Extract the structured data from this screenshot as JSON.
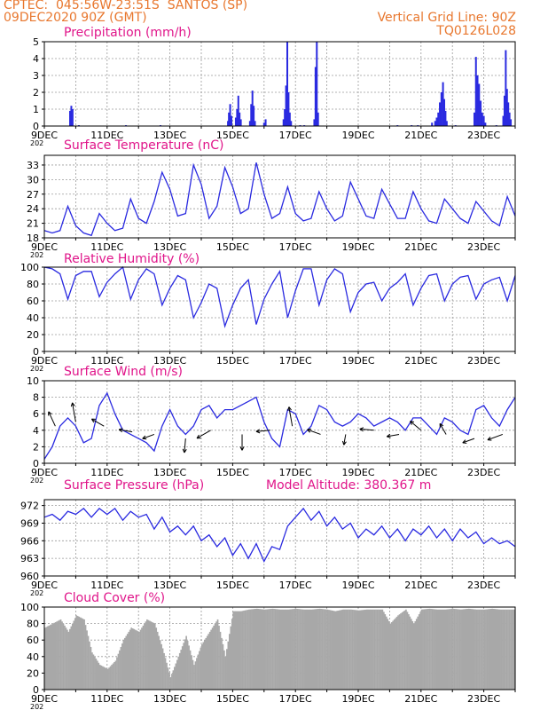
{
  "header": {
    "line1": "CPTEC:  045:56W-23:51S  SANTOS (SP)",
    "line2": "09DEC2020 90Z (GMT)",
    "grid_note": "Vertical Grid Line: 90Z",
    "code": "TQ0126L028"
  },
  "colors": {
    "header": "#e8772e",
    "title": "#e0158a",
    "series": "#2a2ae0",
    "cloud": "#a8a8a8",
    "grid": "#9a9a9a"
  },
  "x_axis": {
    "labels": [
      "9DEC",
      "11DEC",
      "13DEC",
      "15DEC",
      "17DEC",
      "19DEC",
      "21DEC",
      "23DEC"
    ],
    "stub": "202",
    "start_day": 9,
    "end_day": 24
  },
  "chart_data": [
    {
      "type": "bar",
      "title": "Precipitation (mm/h)",
      "ylim": [
        0,
        5
      ],
      "yticks": [
        "0",
        "1",
        "2",
        "3",
        "4",
        "5"
      ],
      "x_units": "days (DEC 2020)",
      "bars": [
        [
          9.82,
          0.9
        ],
        [
          9.86,
          1.2
        ],
        [
          9.9,
          1.0
        ],
        [
          10.1,
          0.05
        ],
        [
          11.6,
          0.05
        ],
        [
          12.7,
          0.05
        ],
        [
          14.85,
          0.3
        ],
        [
          14.88,
          0.8
        ],
        [
          14.92,
          1.3
        ],
        [
          14.96,
          0.6
        ],
        [
          15.1,
          0.5
        ],
        [
          15.14,
          1.0
        ],
        [
          15.18,
          1.8
        ],
        [
          15.22,
          0.8
        ],
        [
          15.26,
          0.4
        ],
        [
          15.55,
          0.3
        ],
        [
          15.59,
          1.3
        ],
        [
          15.63,
          2.1
        ],
        [
          15.67,
          1.2
        ],
        [
          15.71,
          0.3
        ],
        [
          16.0,
          0.2
        ],
        [
          16.05,
          0.4
        ],
        [
          16.62,
          0.4
        ],
        [
          16.66,
          1.0
        ],
        [
          16.7,
          2.4
        ],
        [
          16.74,
          5.0
        ],
        [
          16.78,
          2.0
        ],
        [
          16.82,
          0.8
        ],
        [
          16.86,
          0.3
        ],
        [
          17.15,
          0.05
        ],
        [
          17.28,
          0.05
        ],
        [
          17.6,
          0.4
        ],
        [
          17.64,
          3.5
        ],
        [
          17.68,
          5.0
        ],
        [
          17.72,
          0.8
        ],
        [
          20.25,
          0.05
        ],
        [
          20.7,
          0.05
        ],
        [
          20.9,
          0.05
        ],
        [
          21.35,
          0.2
        ],
        [
          21.45,
          0.3
        ],
        [
          21.5,
          0.5
        ],
        [
          21.55,
          0.8
        ],
        [
          21.6,
          1.4
        ],
        [
          21.65,
          2.0
        ],
        [
          21.7,
          2.6
        ],
        [
          21.74,
          1.6
        ],
        [
          21.78,
          0.9
        ],
        [
          21.82,
          0.3
        ],
        [
          22.1,
          0.05
        ],
        [
          22.7,
          0.8
        ],
        [
          22.75,
          4.1
        ],
        [
          22.8,
          3.0
        ],
        [
          22.85,
          2.5
        ],
        [
          22.9,
          1.5
        ],
        [
          22.95,
          0.8
        ],
        [
          23.0,
          0.6
        ],
        [
          23.05,
          0.2
        ],
        [
          23.4,
          0.05
        ],
        [
          23.62,
          0.6
        ],
        [
          23.66,
          1.8
        ],
        [
          23.7,
          4.5
        ],
        [
          23.74,
          2.2
        ],
        [
          23.78,
          1.4
        ],
        [
          23.82,
          0.8
        ],
        [
          23.86,
          0.4
        ]
      ]
    },
    {
      "type": "line",
      "title": "Surface Temperature (nC)",
      "ylim": [
        18,
        35
      ],
      "yticks": [
        "18",
        "21",
        "24",
        "27",
        "30",
        "33"
      ],
      "ytick_values": [
        18,
        21,
        24,
        27,
        30,
        33
      ],
      "x": [
        9,
        9.25,
        9.5,
        9.75,
        10,
        10.25,
        10.5,
        10.75,
        11,
        11.25,
        11.5,
        11.75,
        12,
        12.25,
        12.5,
        12.75,
        13,
        13.25,
        13.5,
        13.75,
        14,
        14.25,
        14.5,
        14.75,
        15,
        15.25,
        15.5,
        15.75,
        16,
        16.25,
        16.5,
        16.75,
        17,
        17.25,
        17.5,
        17.75,
        18,
        18.25,
        18.5,
        18.75,
        19,
        19.25,
        19.5,
        19.75,
        20,
        20.25,
        20.5,
        20.75,
        21,
        21.25,
        21.5,
        21.75,
        22,
        22.25,
        22.5,
        22.75,
        23,
        23.25,
        23.5,
        23.75,
        24
      ],
      "series": [
        {
          "values": [
            19.5,
            19.0,
            19.5,
            24.5,
            20.5,
            19.0,
            18.5,
            23.0,
            21.0,
            19.5,
            20.0,
            26.0,
            22.0,
            21.0,
            25.5,
            31.5,
            28.0,
            22.5,
            23.0,
            33.0,
            29.0,
            22.0,
            24.5,
            32.5,
            28.5,
            23.0,
            24.0,
            33.5,
            27.0,
            22.0,
            23.0,
            28.5,
            23.0,
            21.5,
            22.0,
            27.5,
            24.0,
            21.5,
            22.5,
            29.5,
            26.0,
            22.5,
            22.0,
            28.0,
            25.0,
            22.0,
            22.0,
            27.5,
            24.0,
            21.5,
            21.0,
            26.0,
            24.0,
            22.0,
            21.0,
            25.5,
            23.5,
            21.5,
            20.5,
            26.5,
            22.5
          ]
        }
      ]
    },
    {
      "type": "line",
      "title": "Relative Humidity (%)",
      "ylim": [
        0,
        100
      ],
      "yticks": [
        "0",
        "20",
        "40",
        "60",
        "80",
        "100"
      ],
      "ytick_values": [
        0,
        20,
        40,
        60,
        80,
        100
      ],
      "x": [
        9,
        9.25,
        9.5,
        9.75,
        10,
        10.25,
        10.5,
        10.75,
        11,
        11.25,
        11.5,
        11.75,
        12,
        12.25,
        12.5,
        12.75,
        13,
        13.25,
        13.5,
        13.75,
        14,
        14.25,
        14.5,
        14.75,
        15,
        15.25,
        15.5,
        15.75,
        16,
        16.25,
        16.5,
        16.75,
        17,
        17.25,
        17.5,
        17.75,
        18,
        18.25,
        18.5,
        18.75,
        19,
        19.25,
        19.5,
        19.75,
        20,
        20.25,
        20.5,
        20.75,
        21,
        21.25,
        21.5,
        21.75,
        22,
        22.25,
        22.5,
        22.75,
        23,
        23.25,
        23.5,
        23.75,
        24
      ],
      "series": [
        {
          "values": [
            100,
            98,
            92,
            62,
            90,
            95,
            95,
            65,
            82,
            92,
            100,
            62,
            85,
            98,
            92,
            55,
            75,
            90,
            85,
            40,
            58,
            80,
            75,
            30,
            55,
            75,
            85,
            32,
            62,
            80,
            95,
            40,
            72,
            98,
            98,
            55,
            85,
            98,
            92,
            47,
            70,
            80,
            82,
            60,
            75,
            82,
            92,
            55,
            75,
            90,
            92,
            60,
            80,
            88,
            90,
            62,
            80,
            85,
            88,
            60,
            90
          ]
        }
      ]
    },
    {
      "type": "line",
      "title": "Surface Wind (m/s)",
      "ylim": [
        0,
        10
      ],
      "yticks": [
        "0",
        "2",
        "4",
        "6",
        "8",
        "10"
      ],
      "ytick_values": [
        0,
        2,
        4,
        6,
        8,
        10
      ],
      "x": [
        9,
        9.25,
        9.5,
        9.75,
        10,
        10.25,
        10.5,
        10.75,
        11,
        11.25,
        11.5,
        11.75,
        12,
        12.25,
        12.5,
        12.75,
        13,
        13.25,
        13.5,
        13.75,
        14,
        14.25,
        14.5,
        14.75,
        15,
        15.25,
        15.5,
        15.75,
        16,
        16.25,
        16.5,
        16.75,
        17,
        17.25,
        17.5,
        17.75,
        18,
        18.25,
        18.5,
        18.75,
        19,
        19.25,
        19.5,
        19.75,
        20,
        20.25,
        20.5,
        20.75,
        21,
        21.25,
        21.5,
        21.75,
        22,
        22.25,
        22.5,
        22.75,
        23,
        23.25,
        23.5,
        23.75,
        24
      ],
      "series": [
        {
          "values": [
            0.5,
            2.0,
            4.5,
            5.5,
            4.5,
            2.5,
            3.0,
            7.0,
            8.5,
            6.0,
            4.0,
            3.5,
            3.0,
            2.5,
            1.5,
            4.5,
            6.5,
            4.5,
            3.5,
            4.5,
            6.5,
            7.0,
            5.5,
            6.5,
            6.5,
            7.0,
            7.5,
            8.0,
            5.0,
            3.0,
            2.0,
            6.5,
            6.0,
            3.5,
            4.5,
            7.0,
            6.5,
            5.0,
            4.5,
            5.0,
            6.0,
            5.5,
            4.5,
            5.0,
            5.5,
            5.0,
            4.0,
            5.5,
            5.5,
            4.5,
            3.5,
            5.5,
            5.0,
            4.0,
            3.5,
            6.5,
            7.0,
            5.5,
            4.5,
            6.5,
            8.0
          ]
        }
      ],
      "vectors": [
        {
          "x": 9.35,
          "y": 4.5,
          "angle": 115,
          "len": 4.5
        },
        {
          "x": 10.0,
          "y": 5.0,
          "angle": 100,
          "len": 5.5
        },
        {
          "x": 10.9,
          "y": 4.5,
          "angle": 150,
          "len": 4.0
        },
        {
          "x": 11.8,
          "y": 3.8,
          "angle": 170,
          "len": 3.8
        },
        {
          "x": 12.5,
          "y": 3.5,
          "angle": 200,
          "len": 3.5
        },
        {
          "x": 13.5,
          "y": 3.0,
          "angle": 265,
          "len": 4.0
        },
        {
          "x": 14.3,
          "y": 4.0,
          "angle": 210,
          "len": 4.5
        },
        {
          "x": 15.3,
          "y": 3.5,
          "angle": 270,
          "len": 4.5
        },
        {
          "x": 16.2,
          "y": 4.0,
          "angle": 185,
          "len": 4.0
        },
        {
          "x": 16.9,
          "y": 4.5,
          "angle": 100,
          "len": 5.5
        },
        {
          "x": 17.8,
          "y": 3.5,
          "angle": 160,
          "len": 4.0
        },
        {
          "x": 18.6,
          "y": 3.5,
          "angle": 260,
          "len": 3.0
        },
        {
          "x": 19.5,
          "y": 4.0,
          "angle": 175,
          "len": 4.0
        },
        {
          "x": 20.3,
          "y": 3.5,
          "angle": 190,
          "len": 3.5
        },
        {
          "x": 21.0,
          "y": 4.0,
          "angle": 140,
          "len": 4.0
        },
        {
          "x": 21.8,
          "y": 3.5,
          "angle": 120,
          "len": 3.5
        },
        {
          "x": 22.7,
          "y": 3.0,
          "angle": 200,
          "len": 3.5
        },
        {
          "x": 23.6,
          "y": 3.5,
          "angle": 200,
          "len": 4.5
        }
      ]
    },
    {
      "type": "line",
      "title": "Surface Pressure (hPa)",
      "annotation": "Model Altitude: 380.367 m",
      "ylim": [
        960,
        973
      ],
      "yticks": [
        "960",
        "963",
        "966",
        "969",
        "972"
      ],
      "ytick_values": [
        960,
        963,
        966,
        969,
        972
      ],
      "x": [
        9,
        9.25,
        9.5,
        9.75,
        10,
        10.25,
        10.5,
        10.75,
        11,
        11.25,
        11.5,
        11.75,
        12,
        12.25,
        12.5,
        12.75,
        13,
        13.25,
        13.5,
        13.75,
        14,
        14.25,
        14.5,
        14.75,
        15,
        15.25,
        15.5,
        15.75,
        16,
        16.25,
        16.5,
        16.75,
        17,
        17.25,
        17.5,
        17.75,
        18,
        18.25,
        18.5,
        18.75,
        19,
        19.25,
        19.5,
        19.75,
        20,
        20.25,
        20.5,
        20.75,
        21,
        21.25,
        21.5,
        21.75,
        22,
        22.25,
        22.5,
        22.75,
        23,
        23.25,
        23.5,
        23.75,
        24
      ],
      "series": [
        {
          "values": [
            970.0,
            970.5,
            969.5,
            971.0,
            970.5,
            971.5,
            970.0,
            971.5,
            970.5,
            971.5,
            969.5,
            971.0,
            970.0,
            970.5,
            968.0,
            970.0,
            967.5,
            968.5,
            967.0,
            968.5,
            966.0,
            967.0,
            965.0,
            966.5,
            963.5,
            965.5,
            963.0,
            965.5,
            962.5,
            965.0,
            964.5,
            968.5,
            970.0,
            971.5,
            969.5,
            971.0,
            968.5,
            970.0,
            968.0,
            969.0,
            966.5,
            968.0,
            967.0,
            968.5,
            966.5,
            968.0,
            966.0,
            968.0,
            967.0,
            968.5,
            966.5,
            968.0,
            966.0,
            968.0,
            966.5,
            967.5,
            965.5,
            966.5,
            965.5,
            966.0,
            965.0
          ]
        }
      ]
    },
    {
      "type": "area",
      "title": "Cloud Cover (%)",
      "ylim": [
        0,
        100
      ],
      "yticks": [
        "0",
        "20",
        "40",
        "60",
        "80",
        "100"
      ],
      "ytick_values": [
        0,
        20,
        40,
        60,
        80,
        100
      ],
      "x": [
        9,
        9.25,
        9.5,
        9.75,
        10,
        10.25,
        10.5,
        10.75,
        11,
        11.25,
        11.5,
        11.75,
        12,
        12.25,
        12.5,
        12.75,
        13,
        13.25,
        13.5,
        13.75,
        14,
        14.25,
        14.5,
        14.75,
        15,
        15.25,
        15.5,
        15.75,
        16,
        16.25,
        16.5,
        16.75,
        17,
        17.25,
        17.5,
        17.75,
        18,
        18.25,
        18.5,
        18.75,
        19,
        19.25,
        19.5,
        19.75,
        20,
        20.25,
        20.5,
        20.75,
        21,
        21.25,
        21.5,
        21.75,
        22,
        22.25,
        22.5,
        22.75,
        23,
        23.25,
        23.5,
        23.75,
        24
      ],
      "series": [
        {
          "values": [
            75,
            80,
            85,
            70,
            90,
            85,
            45,
            30,
            25,
            35,
            60,
            75,
            70,
            85,
            80,
            50,
            15,
            40,
            65,
            30,
            55,
            70,
            85,
            40,
            95,
            95,
            97,
            98,
            97,
            98,
            97,
            97,
            98,
            97,
            97,
            98,
            97,
            95,
            97,
            97,
            96,
            97,
            97,
            97,
            80,
            90,
            97,
            80,
            97,
            98,
            97,
            97,
            98,
            97,
            98,
            97,
            97,
            98,
            97,
            97,
            97
          ]
        }
      ]
    }
  ]
}
